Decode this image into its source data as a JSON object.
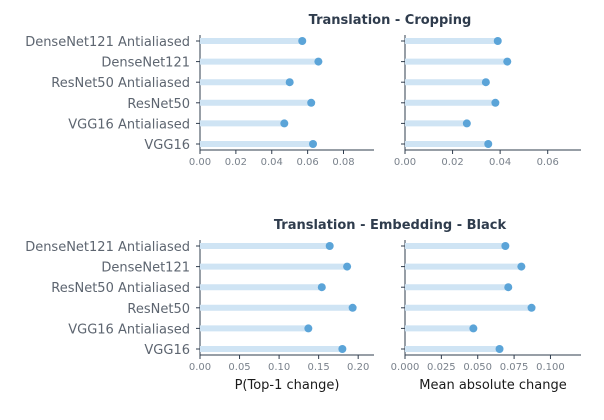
{
  "colors": {
    "bar": "#cfe4f4",
    "point": "#5ba4d8",
    "axis": "#2f3c4d"
  },
  "chart_data": [
    {
      "type": "dot-bar",
      "title": "Translation - Cropping",
      "categories": [
        "DenseNet121 Antialiased",
        "DenseNet121",
        "ResNet50 Antialiased",
        "ResNet50",
        "VGG16 Antialiased",
        "VGG16"
      ],
      "panels": [
        {
          "xlabel": "",
          "xlim": [
            0,
            0.097
          ],
          "ticks": [
            0.0,
            0.02,
            0.04,
            0.06,
            0.08
          ],
          "tick_labels": [
            "0.00",
            "0.02",
            "0.04",
            "0.06",
            "0.08"
          ],
          "values": [
            0.057,
            0.066,
            0.05,
            0.062,
            0.047,
            0.063
          ]
        },
        {
          "xlabel": "",
          "xlim": [
            0,
            0.074
          ],
          "ticks": [
            0.0,
            0.02,
            0.04,
            0.06
          ],
          "tick_labels": [
            "0.00",
            "0.02",
            "0.04",
            "0.06"
          ],
          "values": [
            0.039,
            0.043,
            0.034,
            0.038,
            0.026,
            0.035
          ]
        }
      ]
    },
    {
      "type": "dot-bar",
      "title": "Translation - Embedding - Black",
      "categories": [
        "DenseNet121 Antialiased",
        "DenseNet121",
        "ResNet50 Antialiased",
        "ResNet50",
        "VGG16 Antialiased",
        "VGG16"
      ],
      "panels": [
        {
          "xlabel": "P(Top-1 change)",
          "xlim": [
            0,
            0.22
          ],
          "ticks": [
            0.0,
            0.05,
            0.1,
            0.15,
            0.2
          ],
          "tick_labels": [
            "0.00",
            "0.05",
            "0.10",
            "0.15",
            "0.20"
          ],
          "values": [
            0.164,
            0.186,
            0.154,
            0.193,
            0.137,
            0.18
          ]
        },
        {
          "xlabel": "Mean absolute change",
          "xlim": [
            0,
            0.121
          ],
          "ticks": [
            0.0,
            0.025,
            0.05,
            0.075,
            0.1
          ],
          "tick_labels": [
            "0.000",
            "0.025",
            "0.050",
            "0.075",
            "0.100"
          ],
          "values": [
            0.069,
            0.08,
            0.071,
            0.087,
            0.047,
            0.065
          ]
        }
      ]
    }
  ]
}
